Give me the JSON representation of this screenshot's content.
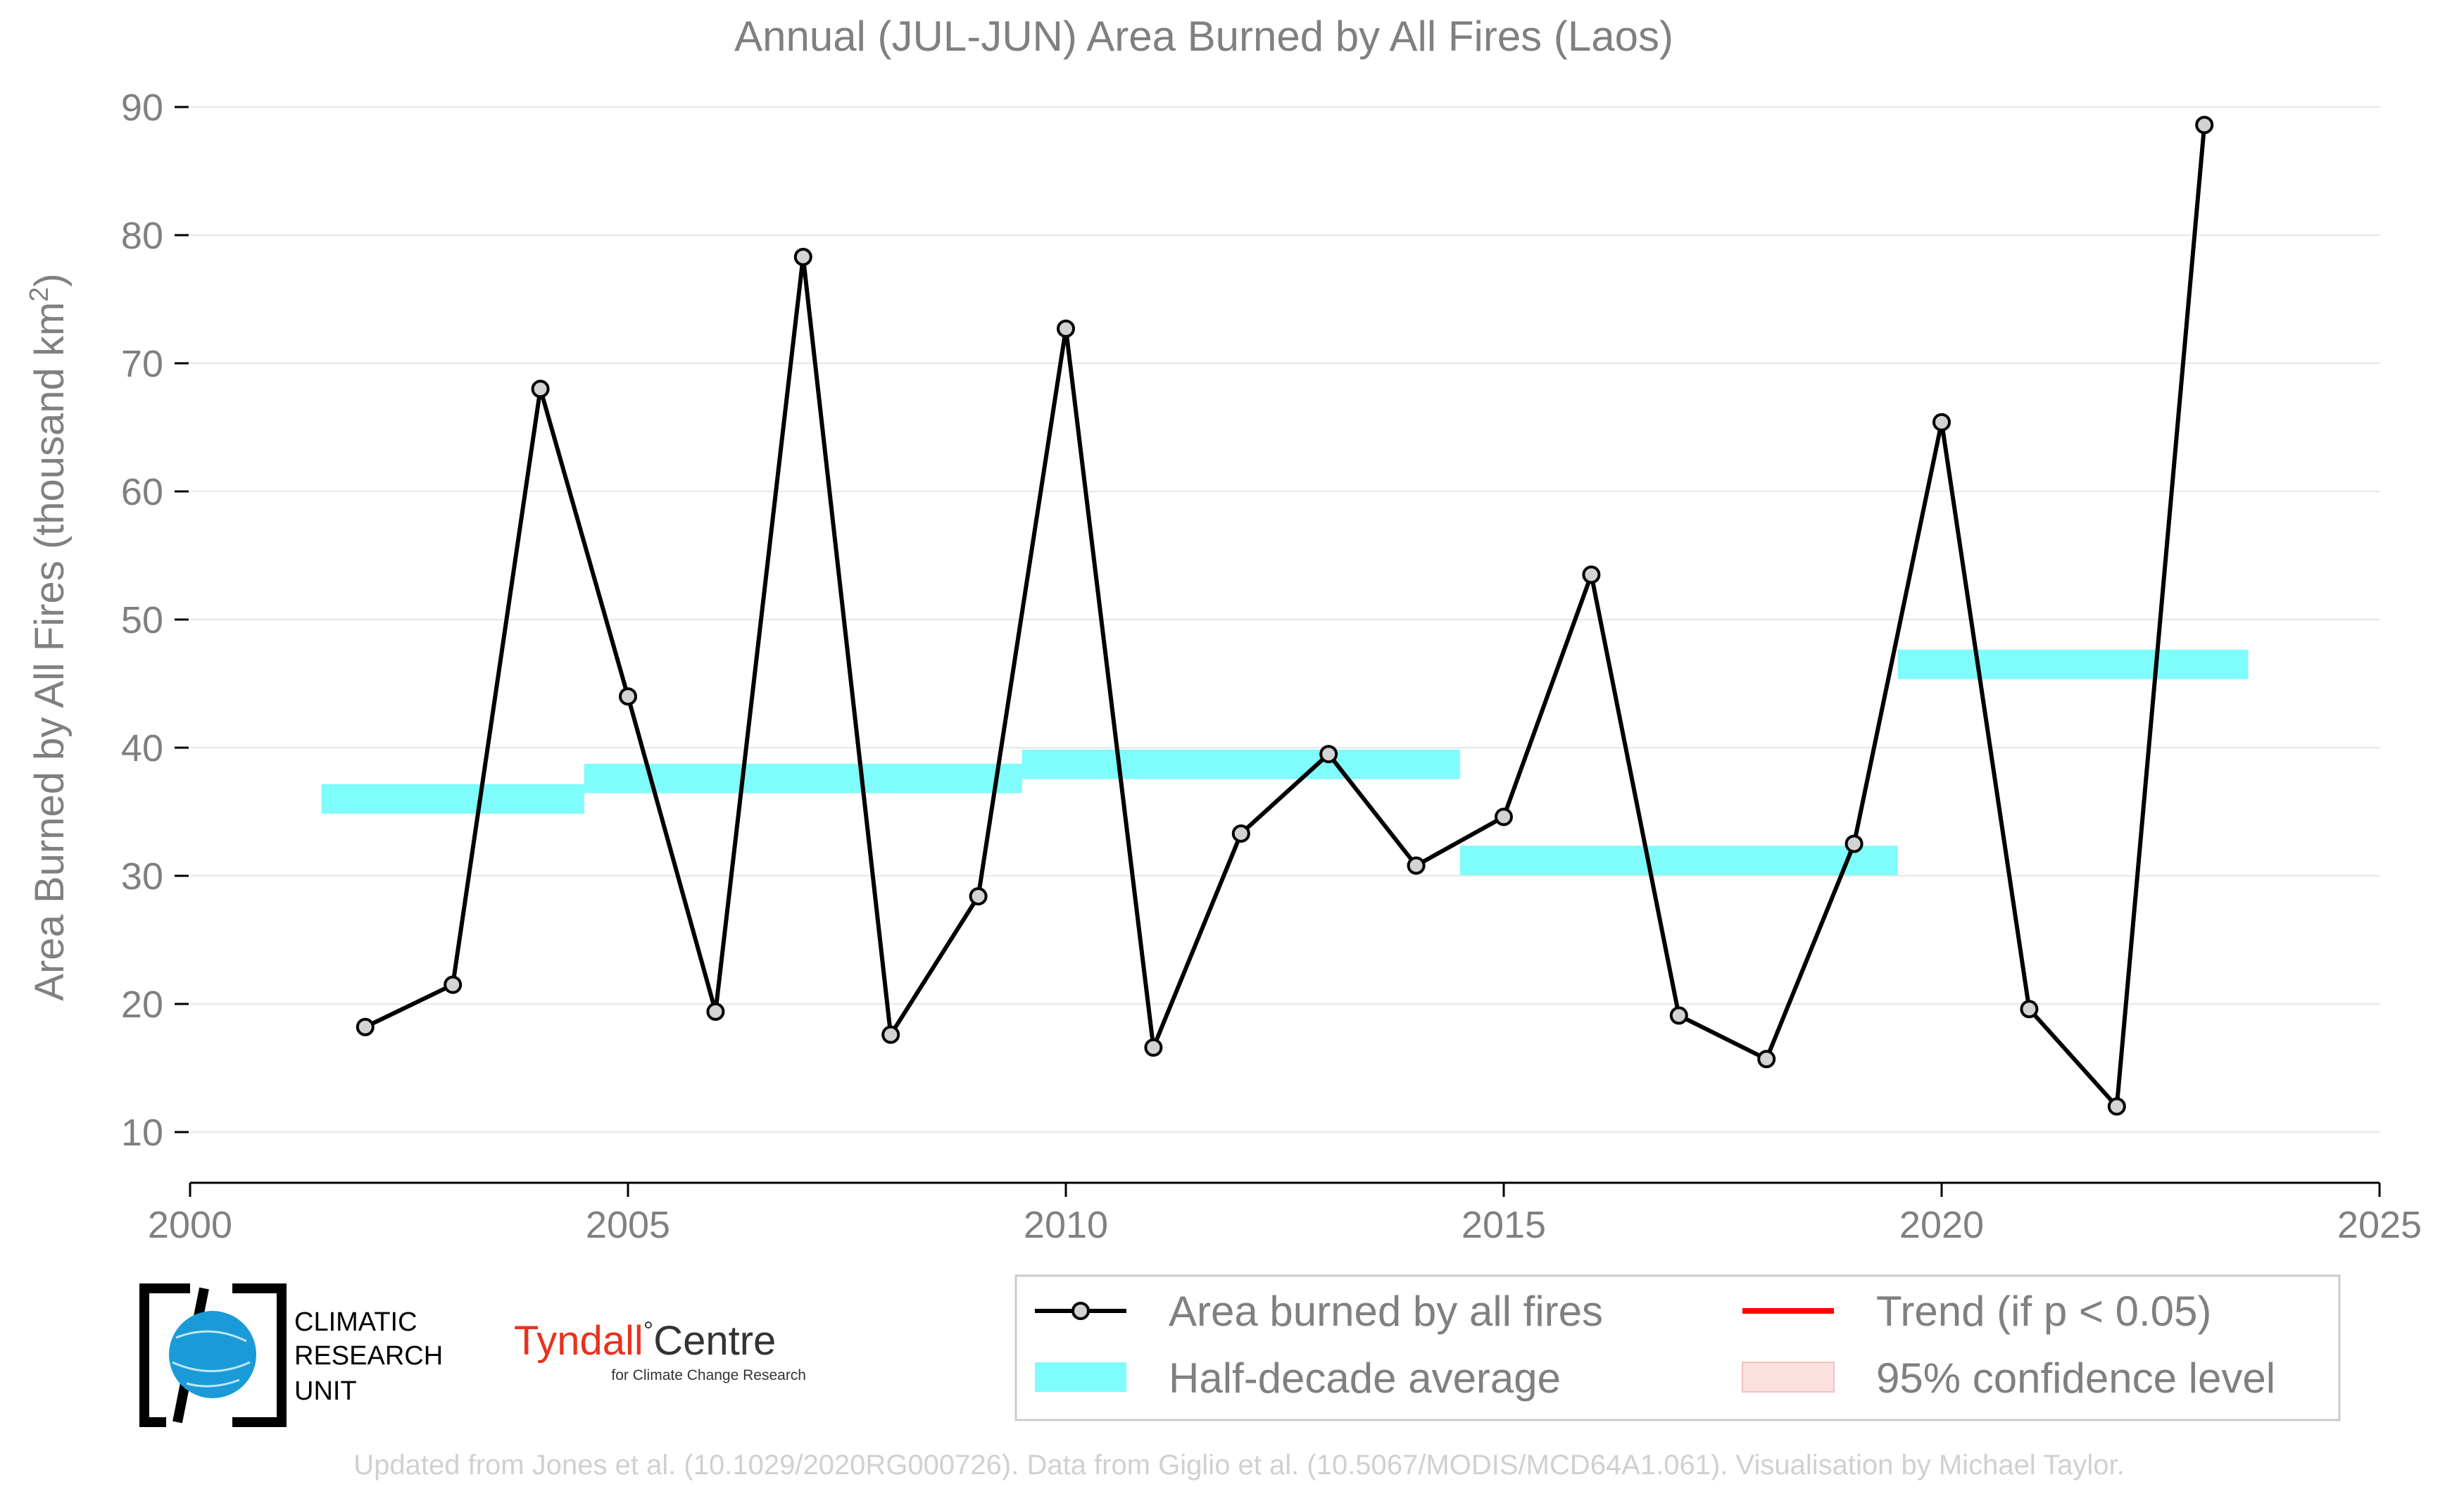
{
  "chart_data": {
    "type": "line",
    "title": "Annual (JUL-JUN) Area Burned by All Fires (Laos)",
    "xlabel": "",
    "ylabel": "Area Burned by All Fires (thousand km",
    "ylabel_sup": "2",
    "ylabel_end": ")",
    "xlim": [
      2000,
      2025
    ],
    "ylim": [
      10,
      90
    ],
    "xticks": [
      "2000",
      "2005",
      "2010",
      "2015",
      "2020",
      "2025"
    ],
    "yticks": [
      "10",
      "20",
      "30",
      "40",
      "50",
      "60",
      "70",
      "80",
      "90"
    ],
    "grid": "horizontal",
    "legend_position": "bottom-right",
    "series": [
      {
        "name": "Area burned by all fires",
        "color": "#000000",
        "marker_fill": "#d3d3d3",
        "x": [
          2002,
          2003,
          2004,
          2005,
          2006,
          2007,
          2008,
          2009,
          2010,
          2011,
          2012,
          2013,
          2014,
          2015,
          2016,
          2017,
          2018,
          2019,
          2020,
          2021,
          2022,
          2023
        ],
        "values": [
          18.2,
          21.5,
          68.0,
          44.0,
          19.4,
          78.3,
          17.6,
          28.4,
          72.7,
          16.6,
          33.3,
          39.5,
          30.8,
          34.6,
          53.5,
          19.1,
          15.7,
          32.5,
          65.4,
          19.6,
          12.0,
          88.6
        ]
      }
    ],
    "half_decade_average": {
      "name": "Half-decade average",
      "color": "#7ffcfc",
      "segments": [
        {
          "x_start": 2001.5,
          "x_end": 2004.5,
          "value": 36.0
        },
        {
          "x_start": 2004.5,
          "x_end": 2009.5,
          "value": 37.6
        },
        {
          "x_start": 2009.5,
          "x_end": 2014.5,
          "value": 38.7
        },
        {
          "x_start": 2014.5,
          "x_end": 2019.5,
          "value": 31.2
        },
        {
          "x_start": 2019.5,
          "x_end": 2023.5,
          "value": 46.5
        }
      ]
    },
    "legend": [
      {
        "label": "Area burned by all fires",
        "kind": "line-marker",
        "color": "#000000"
      },
      {
        "label": "Trend (if p < 0.05)",
        "kind": "line",
        "color": "#ff0000"
      },
      {
        "label": "Half-decade average",
        "kind": "patch",
        "color": "#7ffcfc"
      },
      {
        "label": "95% confidence level",
        "kind": "patch",
        "color": "#fde0e0"
      }
    ]
  },
  "logos": {
    "cru_line1": "CLIMATIC",
    "cru_line2": "RESEARCH",
    "cru_line3": "UNIT",
    "tyndall_main": "Tyndall",
    "tyndall_degree": "°",
    "tyndall_centre": "Centre",
    "tyndall_sub": "for Climate Change Research"
  },
  "credit": "Updated from Jones et al. (10.1029/2020RG000726). Data from Giglio et al. (10.5067/MODIS/MCD64A1.061). Visualisation by Michael Taylor.",
  "colors": {
    "text_gray": "#808080",
    "grid": "#e6e6e6",
    "line": "#000000",
    "half_decade": "#7ffcfc",
    "trend": "#ff0000",
    "confidence": "#fde0e0",
    "cru_blue": "#1a9bd7",
    "tyndall_red": "#e8321e"
  }
}
